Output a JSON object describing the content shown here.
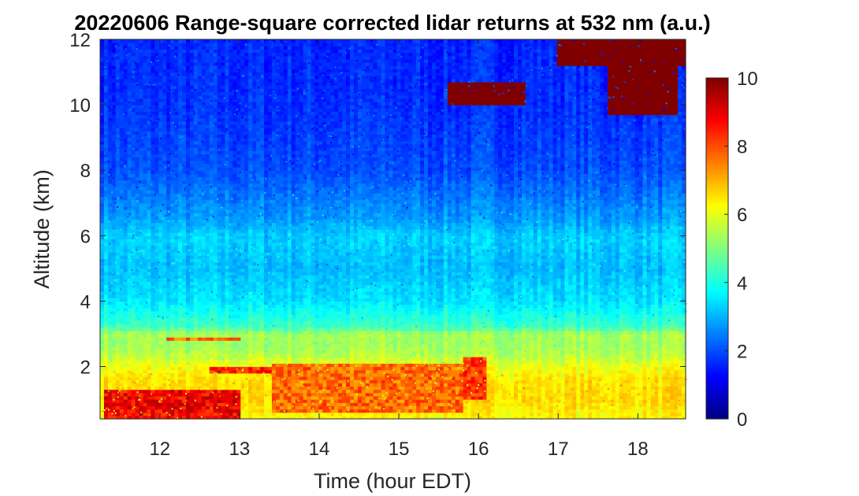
{
  "chart_data": {
    "type": "heatmap",
    "title": "20220606  Range-square corrected lidar returns at 532 nm (a.u.)",
    "xlabel": "Time (hour EDT)",
    "ylabel": "Altitude (km)",
    "xlim": [
      11.25,
      18.6
    ],
    "ylim": [
      0.4,
      12
    ],
    "xticks": [
      12,
      13,
      14,
      15,
      16,
      17,
      18
    ],
    "yticks": [
      2,
      4,
      6,
      8,
      10,
      12
    ],
    "colorbar": {
      "colormap": "jet",
      "clim": [
        0,
        10
      ],
      "ticks": [
        0,
        2,
        4,
        6,
        8,
        10
      ]
    },
    "background_profile": [
      {
        "altitude": 0.5,
        "value": 6.3
      },
      {
        "altitude": 1.0,
        "value": 6.6
      },
      {
        "altitude": 1.6,
        "value": 6.5
      },
      {
        "altitude": 2.0,
        "value": 6.1
      },
      {
        "altitude": 2.4,
        "value": 5.5
      },
      {
        "altitude": 2.7,
        "value": 5.3
      },
      {
        "altitude": 3.0,
        "value": 5.4
      },
      {
        "altitude": 3.2,
        "value": 4.4
      },
      {
        "altitude": 4.0,
        "value": 3.5
      },
      {
        "altitude": 5.0,
        "value": 3.1
      },
      {
        "altitude": 6.0,
        "value": 3.3
      },
      {
        "altitude": 6.5,
        "value": 2.8
      },
      {
        "altitude": 8.0,
        "value": 2.0
      },
      {
        "altitude": 10.0,
        "value": 1.7
      },
      {
        "altitude": 12.0,
        "value": 1.6
      }
    ],
    "features": [
      {
        "name": "boundary-layer aerosol",
        "time": [
          11.3,
          13.0
        ],
        "altitude": [
          0.4,
          1.3
        ],
        "value": 8.8
      },
      {
        "name": "boundary-layer aerosol",
        "time": [
          13.4,
          15.8
        ],
        "altitude": [
          0.6,
          2.1
        ],
        "value": 7.7
      },
      {
        "name": "boundary-layer aerosol",
        "time": [
          15.8,
          16.1
        ],
        "altitude": [
          1.0,
          2.3
        ],
        "value": 8.3
      },
      {
        "name": "aerosol layer",
        "time": [
          12.1,
          13.0
        ],
        "altitude": [
          2.8,
          2.9
        ],
        "value": 7.8
      },
      {
        "name": "aerosol layer",
        "time": [
          12.6,
          13.4
        ],
        "altitude": [
          1.8,
          2.0
        ],
        "value": 8.5
      },
      {
        "name": "cirrus cloud",
        "time": [
          15.6,
          16.6
        ],
        "altitude": [
          10.0,
          10.7
        ],
        "value": 10
      },
      {
        "name": "cirrus cloud",
        "time": [
          17.6,
          18.5
        ],
        "altitude": [
          9.7,
          11.3
        ],
        "value": 10
      },
      {
        "name": "cirrus cloud",
        "time": [
          17.0,
          18.6
        ],
        "altitude": [
          11.2,
          12.0
        ],
        "value": 10
      }
    ]
  }
}
